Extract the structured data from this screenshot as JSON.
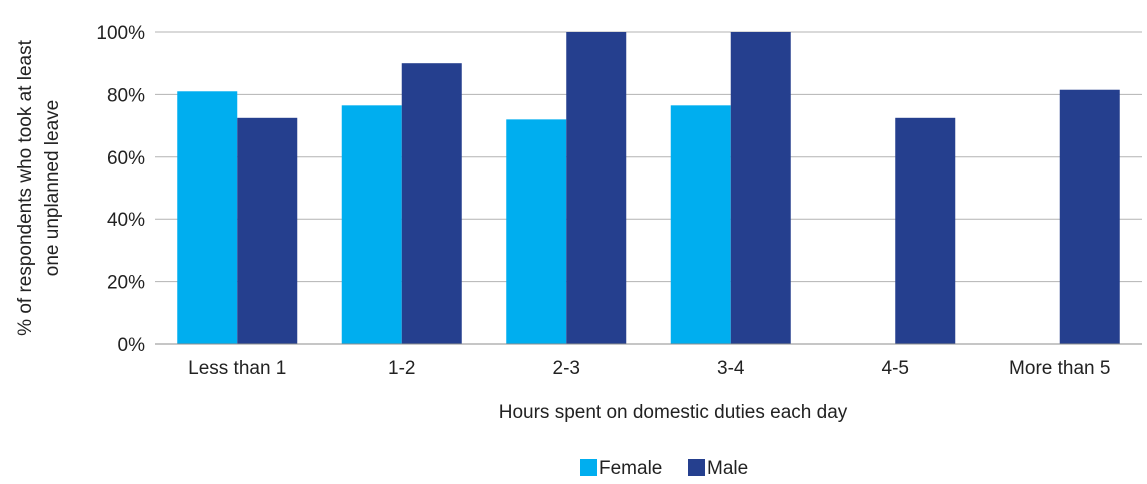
{
  "chart_data": {
    "type": "bar",
    "title": "",
    "xlabel": "Hours spent on domestic duties each day",
    "ylabel_lines": [
      "% of respondents who took at least",
      "one unplanned leave"
    ],
    "categories": [
      "Less than 1",
      "1-2",
      "2-3",
      "3-4",
      "4-5",
      "More than 5"
    ],
    "series": [
      {
        "name": "Female",
        "color": "#00aeef",
        "values": [
          81,
          76.5,
          72,
          76.5,
          null,
          null
        ]
      },
      {
        "name": "Male",
        "color": "#253f8e",
        "values": [
          72.5,
          90,
          100,
          100,
          72.5,
          81.5
        ]
      }
    ],
    "ylim": [
      0,
      100
    ],
    "yticks": [
      0,
      20,
      40,
      60,
      80,
      100
    ],
    "ytick_labels": [
      "0%",
      "20%",
      "40%",
      "60%",
      "80%",
      "100%"
    ],
    "grid": true,
    "legend_position": "bottom-center"
  }
}
